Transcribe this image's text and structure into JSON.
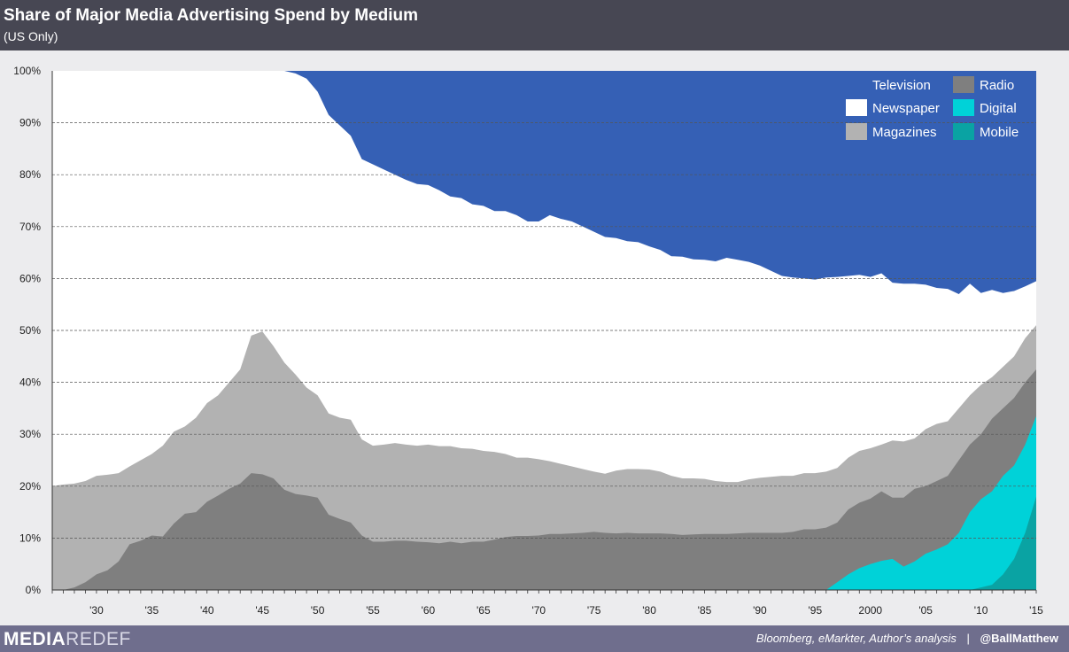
{
  "header": {
    "title": "Share of Major Media Advertising Spend by Medium",
    "subtitle": "(US Only)"
  },
  "footer": {
    "brand_part1": "MEDIA",
    "brand_part2": "REDEF",
    "source": "Bloomberg, eMarkter, Author’s analysis",
    "separator": "|",
    "handle": "@BallMatthew"
  },
  "colors": {
    "television": "#3560b5",
    "newspaper": "#ffffff",
    "magazines": "#b2b2b2",
    "radio": "#7f7f7f",
    "digital": "#00d2d8",
    "mobile": "#0aa3a3",
    "plot_background": "#ececee",
    "header_background": "#474753",
    "footer_background": "#6f6e8d"
  },
  "chart_data": {
    "type": "area",
    "stacked": true,
    "title": "Share of Major Media Advertising Spend by Medium",
    "subtitle": "(US Only)",
    "xlabel": "",
    "ylabel": "",
    "ylim": [
      0,
      100
    ],
    "xlim": [
      1926,
      2015
    ],
    "grid": true,
    "legend_position": "top-right",
    "y_ticks": [
      "0%",
      "10%",
      "20%",
      "30%",
      "40%",
      "50%",
      "60%",
      "70%",
      "80%",
      "90%",
      "100%"
    ],
    "x_ticks": [
      {
        "year": 1930,
        "label": "'30"
      },
      {
        "year": 1935,
        "label": "'35"
      },
      {
        "year": 1940,
        "label": "'40"
      },
      {
        "year": 1945,
        "label": "'45"
      },
      {
        "year": 1950,
        "label": "'50"
      },
      {
        "year": 1955,
        "label": "'55"
      },
      {
        "year": 1960,
        "label": "'60"
      },
      {
        "year": 1965,
        "label": "'65"
      },
      {
        "year": 1970,
        "label": "'70"
      },
      {
        "year": 1975,
        "label": "'75"
      },
      {
        "year": 1980,
        "label": "'80"
      },
      {
        "year": 1985,
        "label": "'85"
      },
      {
        "year": 1990,
        "label": "'90"
      },
      {
        "year": 1995,
        "label": "'95"
      },
      {
        "year": 2000,
        "label": "2000"
      },
      {
        "year": 2005,
        "label": "'05"
      },
      {
        "year": 2010,
        "label": "'10"
      },
      {
        "year": 2015,
        "label": "'15"
      }
    ],
    "cumulative_boundaries": {
      "mobile": [
        [
          1926,
          0
        ],
        [
          2008,
          0
        ],
        [
          2009,
          0
        ],
        [
          2010,
          0.5
        ],
        [
          2011,
          1
        ],
        [
          2012,
          3
        ],
        [
          2013,
          6
        ],
        [
          2014,
          11
        ],
        [
          2015,
          18
        ]
      ],
      "digital": [
        [
          1926,
          0
        ],
        [
          1995,
          0
        ],
        [
          1996,
          0
        ],
        [
          1997,
          1.5
        ],
        [
          1998,
          3
        ],
        [
          1999,
          4.2
        ],
        [
          2000,
          5
        ],
        [
          2001,
          5.6
        ],
        [
          2002,
          6
        ],
        [
          2003,
          4.5
        ],
        [
          2004,
          5.5
        ],
        [
          2005,
          7
        ],
        [
          2006,
          7.8
        ],
        [
          2007,
          8.8
        ],
        [
          2008,
          11
        ],
        [
          2009,
          15
        ],
        [
          2010,
          17.5
        ],
        [
          2011,
          19
        ],
        [
          2012,
          22
        ],
        [
          2013,
          24
        ],
        [
          2014,
          28
        ],
        [
          2015,
          33.5
        ]
      ],
      "radio": [
        [
          1926,
          0
        ],
        [
          1927,
          0
        ],
        [
          1928,
          0.5
        ],
        [
          1929,
          1.5
        ],
        [
          1930,
          3
        ],
        [
          1931,
          3.8
        ],
        [
          1932,
          5.5
        ],
        [
          1933,
          8.8
        ],
        [
          1934,
          9.5
        ],
        [
          1935,
          10.5
        ],
        [
          1936,
          10.3
        ],
        [
          1937,
          12.8
        ],
        [
          1938,
          14.7
        ],
        [
          1939,
          15
        ],
        [
          1940,
          17
        ],
        [
          1941,
          18.2
        ],
        [
          1942,
          19.5
        ],
        [
          1943,
          20.5
        ],
        [
          1944,
          22.5
        ],
        [
          1945,
          22.3
        ],
        [
          1946,
          21.5
        ],
        [
          1947,
          19.3
        ],
        [
          1948,
          18.5
        ],
        [
          1949,
          18.2
        ],
        [
          1950,
          17.8
        ],
        [
          1951,
          14.5
        ],
        [
          1952,
          13.7
        ],
        [
          1953,
          13
        ],
        [
          1954,
          10.5
        ],
        [
          1955,
          9.3
        ],
        [
          1956,
          9.3
        ],
        [
          1957,
          9.5
        ],
        [
          1958,
          9.5
        ],
        [
          1959,
          9.3
        ],
        [
          1960,
          9.2
        ],
        [
          1961,
          9
        ],
        [
          1962,
          9.3
        ],
        [
          1963,
          9
        ],
        [
          1964,
          9.3
        ],
        [
          1965,
          9.3
        ],
        [
          1966,
          9.7
        ],
        [
          1967,
          10.2
        ],
        [
          1968,
          10.4
        ],
        [
          1969,
          10.4
        ],
        [
          1970,
          10.5
        ],
        [
          1971,
          10.8
        ],
        [
          1972,
          10.8
        ],
        [
          1973,
          10.9
        ],
        [
          1974,
          11
        ],
        [
          1975,
          11.2
        ],
        [
          1976,
          11
        ],
        [
          1977,
          10.9
        ],
        [
          1978,
          11
        ],
        [
          1979,
          10.9
        ],
        [
          1980,
          10.9
        ],
        [
          1981,
          10.9
        ],
        [
          1982,
          10.8
        ],
        [
          1983,
          10.6
        ],
        [
          1984,
          10.7
        ],
        [
          1985,
          10.8
        ],
        [
          1986,
          10.8
        ],
        [
          1987,
          10.8
        ],
        [
          1988,
          10.9
        ],
        [
          1989,
          11
        ],
        [
          1990,
          11
        ],
        [
          1991,
          11
        ],
        [
          1992,
          11
        ],
        [
          1993,
          11.2
        ],
        [
          1994,
          11.7
        ],
        [
          1995,
          11.7
        ],
        [
          1996,
          12
        ],
        [
          1997,
          13
        ],
        [
          1998,
          15.5
        ],
        [
          1999,
          16.8
        ],
        [
          2000,
          17.6
        ],
        [
          2001,
          19
        ],
        [
          2002,
          17.8
        ],
        [
          2003,
          17.8
        ],
        [
          2004,
          19.5
        ],
        [
          2005,
          20
        ],
        [
          2006,
          21
        ],
        [
          2007,
          22
        ],
        [
          2008,
          25
        ],
        [
          2009,
          28
        ],
        [
          2010,
          30
        ],
        [
          2011,
          33
        ],
        [
          2012,
          35
        ],
        [
          2013,
          37
        ],
        [
          2014,
          40
        ],
        [
          2015,
          42.5
        ]
      ],
      "magazines": [
        [
          1926,
          20
        ],
        [
          1927,
          20.3
        ],
        [
          1928,
          20.5
        ],
        [
          1929,
          21
        ],
        [
          1930,
          22
        ],
        [
          1931,
          22.2
        ],
        [
          1932,
          22.5
        ],
        [
          1933,
          23.8
        ],
        [
          1934,
          25
        ],
        [
          1935,
          26.2
        ],
        [
          1936,
          27.8
        ],
        [
          1937,
          30.5
        ],
        [
          1938,
          31.5
        ],
        [
          1939,
          33.2
        ],
        [
          1940,
          36
        ],
        [
          1941,
          37.5
        ],
        [
          1942,
          40
        ],
        [
          1943,
          42.5
        ],
        [
          1944,
          49
        ],
        [
          1945,
          49.8
        ],
        [
          1946,
          47
        ],
        [
          1947,
          43.8
        ],
        [
          1948,
          41.5
        ],
        [
          1949,
          39
        ],
        [
          1950,
          37.5
        ],
        [
          1951,
          34
        ],
        [
          1952,
          33.2
        ],
        [
          1953,
          32.8
        ],
        [
          1954,
          29
        ],
        [
          1955,
          27.8
        ],
        [
          1956,
          28
        ],
        [
          1957,
          28.3
        ],
        [
          1958,
          28
        ],
        [
          1959,
          27.8
        ],
        [
          1960,
          28
        ],
        [
          1961,
          27.7
        ],
        [
          1962,
          27.7
        ],
        [
          1963,
          27.3
        ],
        [
          1964,
          27.2
        ],
        [
          1965,
          26.8
        ],
        [
          1966,
          26.6
        ],
        [
          1967,
          26.2
        ],
        [
          1968,
          25.5
        ],
        [
          1969,
          25.5
        ],
        [
          1970,
          25.2
        ],
        [
          1971,
          24.8
        ],
        [
          1972,
          24.3
        ],
        [
          1973,
          23.8
        ],
        [
          1974,
          23.3
        ],
        [
          1975,
          22.8
        ],
        [
          1976,
          22.4
        ],
        [
          1977,
          23
        ],
        [
          1978,
          23.3
        ],
        [
          1979,
          23.3
        ],
        [
          1980,
          23.2
        ],
        [
          1981,
          22.8
        ],
        [
          1982,
          22
        ],
        [
          1983,
          21.5
        ],
        [
          1984,
          21.5
        ],
        [
          1985,
          21.4
        ],
        [
          1986,
          21
        ],
        [
          1987,
          20.8
        ],
        [
          1988,
          20.8
        ],
        [
          1989,
          21.3
        ],
        [
          1990,
          21.6
        ],
        [
          1991,
          21.8
        ],
        [
          1992,
          22
        ],
        [
          1993,
          22
        ],
        [
          1994,
          22.5
        ],
        [
          1995,
          22.5
        ],
        [
          1996,
          22.8
        ],
        [
          1997,
          23.5
        ],
        [
          1998,
          25.5
        ],
        [
          1999,
          26.8
        ],
        [
          2000,
          27.3
        ],
        [
          2001,
          28
        ],
        [
          2002,
          28.8
        ],
        [
          2003,
          28.6
        ],
        [
          2004,
          29.2
        ],
        [
          2005,
          31
        ],
        [
          2006,
          32
        ],
        [
          2007,
          32.5
        ],
        [
          2008,
          35
        ],
        [
          2009,
          37.5
        ],
        [
          2010,
          39.5
        ],
        [
          2011,
          41
        ],
        [
          2012,
          43
        ],
        [
          2013,
          45
        ],
        [
          2014,
          48.5
        ],
        [
          2015,
          51
        ]
      ],
      "newspaper": [
        [
          1926,
          100
        ],
        [
          1946,
          100
        ],
        [
          1947,
          100
        ],
        [
          1948,
          99.5
        ],
        [
          1949,
          98.5
        ],
        [
          1950,
          96
        ],
        [
          1951,
          91.5
        ],
        [
          1952,
          89.5
        ],
        [
          1953,
          87.5
        ],
        [
          1954,
          83
        ],
        [
          1955,
          82
        ],
        [
          1956,
          81
        ],
        [
          1957,
          80
        ],
        [
          1958,
          79
        ],
        [
          1959,
          78.2
        ],
        [
          1960,
          78
        ],
        [
          1961,
          77
        ],
        [
          1962,
          75.8
        ],
        [
          1963,
          75.5
        ],
        [
          1964,
          74.3
        ],
        [
          1965,
          74
        ],
        [
          1966,
          73
        ],
        [
          1967,
          73
        ],
        [
          1968,
          72.2
        ],
        [
          1969,
          71
        ],
        [
          1970,
          71
        ],
        [
          1971,
          72.2
        ],
        [
          1972,
          71.5
        ],
        [
          1973,
          71
        ],
        [
          1974,
          70
        ],
        [
          1975,
          69
        ],
        [
          1976,
          68
        ],
        [
          1977,
          67.8
        ],
        [
          1978,
          67.2
        ],
        [
          1979,
          67
        ],
        [
          1980,
          66.2
        ],
        [
          1981,
          65.5
        ],
        [
          1982,
          64.3
        ],
        [
          1983,
          64.2
        ],
        [
          1984,
          63.7
        ],
        [
          1985,
          63.6
        ],
        [
          1986,
          63.3
        ],
        [
          1987,
          64
        ],
        [
          1988,
          63.6
        ],
        [
          1989,
          63.2
        ],
        [
          1990,
          62.5
        ],
        [
          1991,
          61.5
        ],
        [
          1992,
          60.5
        ],
        [
          1993,
          60.2
        ],
        [
          1994,
          60
        ],
        [
          1995,
          59.8
        ],
        [
          1996,
          60.2
        ],
        [
          1997,
          60.3
        ],
        [
          1998,
          60.5
        ],
        [
          1999,
          60.7
        ],
        [
          2000,
          60.3
        ],
        [
          2001,
          61
        ],
        [
          2002,
          59.2
        ],
        [
          2003,
          59
        ],
        [
          2004,
          59
        ],
        [
          2005,
          58.8
        ],
        [
          2006,
          58.2
        ],
        [
          2007,
          58
        ],
        [
          2008,
          57
        ],
        [
          2009,
          59
        ],
        [
          2010,
          57.2
        ],
        [
          2011,
          57.8
        ],
        [
          2012,
          57.2
        ],
        [
          2013,
          57.6
        ],
        [
          2014,
          58.5
        ],
        [
          2015,
          59.5
        ]
      ],
      "television": [
        [
          1926,
          100
        ],
        [
          2015,
          100
        ]
      ]
    },
    "legend": [
      {
        "key": "television",
        "label": "Television"
      },
      {
        "key": "radio",
        "label": "Radio"
      },
      {
        "key": "newspaper",
        "label": "Newspaper"
      },
      {
        "key": "digital",
        "label": "Digital"
      },
      {
        "key": "magazines",
        "label": "Magazines"
      },
      {
        "key": "mobile",
        "label": "Mobile"
      }
    ]
  }
}
